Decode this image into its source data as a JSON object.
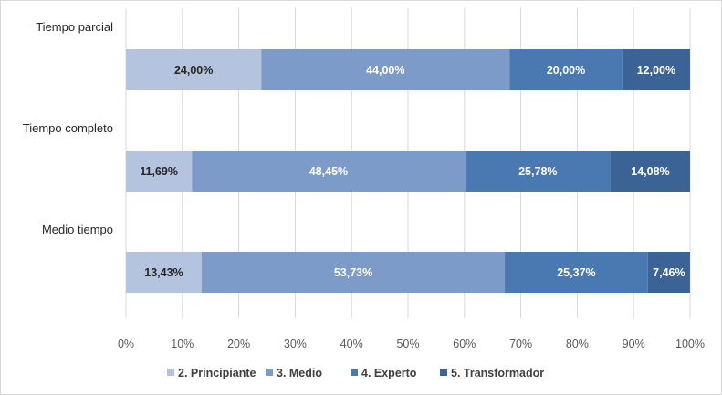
{
  "chart_data": {
    "type": "bar",
    "orientation": "horizontal",
    "stacked": "100%",
    "categories": [
      "Tiempo parcial",
      "Tiempo completo",
      "Medio tiempo"
    ],
    "series": [
      {
        "name": "2. Principiante",
        "values": [
          24.0,
          11.69,
          13.43
        ],
        "labels": [
          "24,00%",
          "11,69%",
          "13,43%"
        ],
        "color": "#b4c3de",
        "label_color": "#262626"
      },
      {
        "name": "3. Medio",
        "values": [
          44.0,
          48.45,
          53.73
        ],
        "labels": [
          "44,00%",
          "48,45%",
          "53,73%"
        ],
        "color": "#7d9bc8",
        "label_color": "#ffffff"
      },
      {
        "name": "4. Experto",
        "values": [
          20.0,
          25.78,
          25.37
        ],
        "labels": [
          "20,00%",
          "25,78%",
          "25,37%"
        ],
        "color": "#4a78b0",
        "label_color": "#ffffff"
      },
      {
        "name": "5. Transformador",
        "values": [
          12.0,
          14.08,
          7.46
        ],
        "labels": [
          "12,00%",
          "14,08%",
          "7,46%"
        ],
        "color": "#3c6396",
        "label_color": "#ffffff"
      }
    ],
    "xlim": [
      0,
      100
    ],
    "xticks": [
      "0%",
      "10%",
      "20%",
      "30%",
      "40%",
      "50%",
      "60%",
      "70%",
      "80%",
      "90%",
      "100%"
    ],
    "grid": true,
    "legend": "bottom"
  }
}
